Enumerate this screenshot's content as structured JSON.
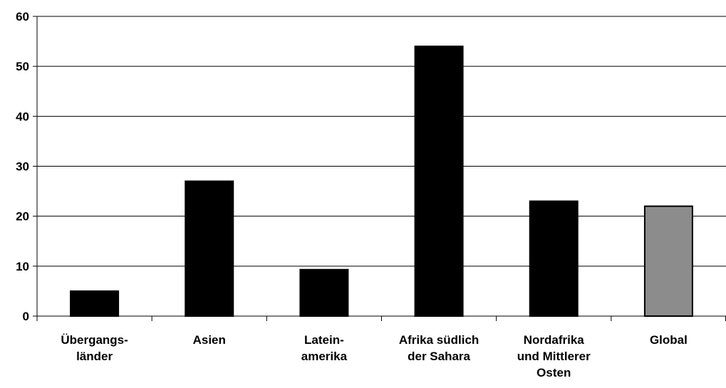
{
  "chart_data": {
    "type": "bar",
    "title": "",
    "xlabel": "",
    "ylabel": "",
    "ylim": [
      0,
      60
    ],
    "yticks": [
      0,
      10,
      20,
      30,
      40,
      50,
      60
    ],
    "grid": true,
    "legend": "none",
    "categories": [
      "Übergangs-\nländer",
      "Asien",
      "Latein-\namerika",
      "Afrika südlich\nder Sahara",
      "Nordafrika\nund Mittlerer\nOsten",
      "Global"
    ],
    "values": [
      5,
      27,
      9.3,
      54,
      23,
      22
    ],
    "colors": [
      "#000000",
      "#000000",
      "#000000",
      "#000000",
      "#000000",
      "#8c8c8c"
    ]
  }
}
